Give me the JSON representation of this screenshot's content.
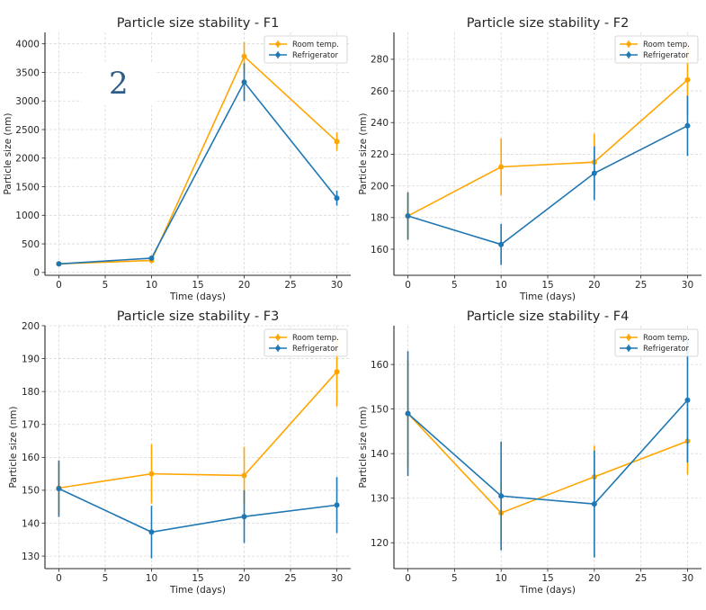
{
  "figure_annotation": "2",
  "chart_data": [
    {
      "type": "line",
      "title": "Particle size stability - F1",
      "xlabel": "Time (days)",
      "ylabel": "Particle size (nm)",
      "x": [
        0,
        10,
        20,
        30
      ],
      "xlim": [
        -1.5,
        31.5
      ],
      "ylim": [
        -50,
        4200
      ],
      "xticks": [
        0,
        5,
        10,
        15,
        20,
        25,
        30
      ],
      "yticks": [
        0,
        500,
        1000,
        1500,
        2000,
        2500,
        3000,
        3500,
        4000
      ],
      "grid": true,
      "legend": "top-right",
      "series": [
        {
          "name": "Room temp.",
          "color": "#ffa500",
          "values": [
            150,
            210,
            3780,
            2290
          ],
          "errors": [
            20,
            25,
            250,
            160
          ]
        },
        {
          "name": "Refrigerator",
          "color": "#1f77b4",
          "values": [
            150,
            250,
            3330,
            1300
          ],
          "errors": [
            20,
            25,
            330,
            130
          ]
        }
      ]
    },
    {
      "type": "line",
      "title": "Particle size stability - F2",
      "xlabel": "Time (days)",
      "ylabel": "Particle size (nm)",
      "x": [
        0,
        10,
        20,
        30
      ],
      "xlim": [
        -1.5,
        31.5
      ],
      "ylim": [
        143.5,
        297
      ],
      "xticks": [
        0,
        5,
        10,
        15,
        20,
        25,
        30
      ],
      "yticks": [
        160,
        180,
        200,
        220,
        240,
        260,
        280
      ],
      "grid": true,
      "legend": "top-right",
      "series": [
        {
          "name": "Room temp.",
          "color": "#ffa500",
          "values": [
            181,
            212,
            215,
            267
          ],
          "errors": [
            15,
            18,
            18,
            22
          ]
        },
        {
          "name": "Refrigerator",
          "color": "#1f77b4",
          "values": [
            181,
            163,
            208,
            238
          ],
          "errors": [
            15,
            13,
            17,
            19
          ]
        }
      ]
    },
    {
      "type": "line",
      "title": "Particle size stability - F3",
      "xlabel": "Time (days)",
      "ylabel": "Particle size (nm)",
      "x": [
        0,
        10,
        20,
        30
      ],
      "xlim": [
        -1.5,
        31.5
      ],
      "ylim": [
        126.2,
        200
      ],
      "xticks": [
        0,
        5,
        10,
        15,
        20,
        25,
        30
      ],
      "yticks": [
        130,
        140,
        150,
        160,
        170,
        180,
        190,
        200
      ],
      "grid": true,
      "legend": "top-right",
      "series": [
        {
          "name": "Room temp.",
          "color": "#ffa500",
          "values": [
            150.7,
            155,
            154.5,
            186
          ],
          "errors": [
            8,
            9,
            8.7,
            10.5
          ]
        },
        {
          "name": "Refrigerator",
          "color": "#1f77b4",
          "values": [
            150.5,
            137.3,
            142,
            145.5
          ],
          "errors": [
            8.6,
            8,
            8,
            8.5
          ]
        }
      ]
    },
    {
      "type": "line",
      "title": "Particle size stability - F4",
      "xlabel": "Time (days)",
      "ylabel": "Particle size (nm)",
      "x": [
        0,
        10,
        20,
        30
      ],
      "xlim": [
        -1.5,
        31.5
      ],
      "ylim": [
        114.2,
        168.7
      ],
      "xticks": [
        0,
        5,
        10,
        15,
        20,
        25,
        30
      ],
      "yticks": [
        120,
        130,
        140,
        150,
        160
      ],
      "grid": true,
      "legend": "top-right",
      "series": [
        {
          "name": "Room temp.",
          "color": "#ffa500",
          "values": [
            149,
            126.7,
            134.8,
            142.8
          ],
          "errors": [
            12,
            7,
            7,
            7.5
          ]
        },
        {
          "name": "Refrigerator",
          "color": "#1f77b4",
          "values": [
            149,
            130.5,
            128.7,
            152
          ],
          "errors": [
            14,
            12.2,
            12,
            14
          ]
        }
      ]
    }
  ]
}
